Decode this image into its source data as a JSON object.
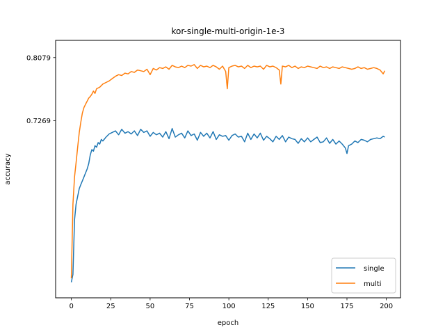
{
  "chart_data": {
    "type": "line",
    "title": "kor-single-multi-origin-1e-3",
    "xlabel": "epoch",
    "ylabel": "accuracy",
    "xlim": [
      -10,
      209
    ],
    "ylim": [
      0.5,
      0.83
    ],
    "x_ticks": [
      0,
      25,
      50,
      75,
      100,
      125,
      150,
      175,
      200
    ],
    "y_ticks": [
      0.7269,
      0.8079
    ],
    "y_tick_labels": [
      "0.7269",
      "0.8079"
    ],
    "grid": false,
    "legend_position": "lower-right",
    "series": [
      {
        "name": "single",
        "color": "#1f77b4",
        "x": [
          0,
          1,
          2,
          3,
          4,
          5,
          6,
          7,
          8,
          9,
          10,
          11,
          12,
          13,
          14,
          15,
          16,
          17,
          18,
          19,
          20,
          22,
          24,
          26,
          28,
          30,
          32,
          34,
          36,
          38,
          40,
          42,
          44,
          46,
          48,
          50,
          52,
          54,
          56,
          58,
          60,
          62,
          64,
          66,
          68,
          70,
          72,
          74,
          76,
          78,
          80,
          82,
          84,
          86,
          88,
          90,
          92,
          94,
          96,
          98,
          100,
          102,
          104,
          106,
          108,
          110,
          112,
          114,
          116,
          118,
          120,
          122,
          124,
          126,
          128,
          130,
          132,
          134,
          136,
          138,
          140,
          142,
          144,
          146,
          148,
          150,
          152,
          154,
          156,
          158,
          160,
          162,
          164,
          166,
          168,
          170,
          172,
          174,
          175,
          176,
          178,
          180,
          182,
          184,
          186,
          188,
          190,
          192,
          194,
          196,
          198,
          199
        ],
        "values": [
          0.52,
          0.53,
          0.6,
          0.62,
          0.63,
          0.64,
          0.645,
          0.65,
          0.655,
          0.66,
          0.665,
          0.672,
          0.683,
          0.69,
          0.688,
          0.695,
          0.693,
          0.699,
          0.697,
          0.703,
          0.701,
          0.706,
          0.71,
          0.712,
          0.714,
          0.709,
          0.716,
          0.711,
          0.713,
          0.71,
          0.714,
          0.708,
          0.716,
          0.712,
          0.714,
          0.707,
          0.712,
          0.709,
          0.711,
          0.706,
          0.713,
          0.704,
          0.717,
          0.706,
          0.709,
          0.711,
          0.705,
          0.714,
          0.708,
          0.71,
          0.702,
          0.712,
          0.707,
          0.711,
          0.705,
          0.713,
          0.703,
          0.709,
          0.707,
          0.708,
          0.702,
          0.708,
          0.71,
          0.706,
          0.707,
          0.7,
          0.711,
          0.703,
          0.71,
          0.705,
          0.711,
          0.702,
          0.707,
          0.704,
          0.7,
          0.707,
          0.703,
          0.708,
          0.7,
          0.706,
          0.704,
          0.703,
          0.698,
          0.704,
          0.7,
          0.705,
          0.7,
          0.703,
          0.706,
          0.699,
          0.7,
          0.705,
          0.698,
          0.703,
          0.697,
          0.701,
          0.697,
          0.692,
          0.685,
          0.695,
          0.697,
          0.701,
          0.699,
          0.703,
          0.702,
          0.7,
          0.703,
          0.704,
          0.705,
          0.704,
          0.707,
          0.706
        ]
      },
      {
        "name": "multi",
        "color": "#ff7f0e",
        "x": [
          0,
          1,
          2,
          3,
          4,
          5,
          6,
          7,
          8,
          9,
          10,
          11,
          12,
          13,
          14,
          15,
          16,
          18,
          20,
          22,
          24,
          26,
          28,
          30,
          32,
          34,
          36,
          38,
          40,
          42,
          44,
          46,
          48,
          50,
          52,
          54,
          56,
          58,
          60,
          62,
          64,
          66,
          68,
          70,
          72,
          74,
          76,
          78,
          80,
          82,
          84,
          86,
          88,
          90,
          92,
          94,
          96,
          98,
          99,
          100,
          102,
          104,
          106,
          108,
          110,
          112,
          114,
          116,
          118,
          120,
          122,
          124,
          126,
          128,
          130,
          132,
          133,
          134,
          136,
          138,
          140,
          142,
          144,
          146,
          148,
          150,
          152,
          154,
          156,
          158,
          160,
          162,
          164,
          166,
          168,
          170,
          172,
          174,
          176,
          178,
          180,
          182,
          184,
          186,
          188,
          190,
          192,
          194,
          196,
          198,
          199
        ],
        "values": [
          0.525,
          0.62,
          0.655,
          0.673,
          0.693,
          0.712,
          0.725,
          0.737,
          0.744,
          0.748,
          0.752,
          0.756,
          0.758,
          0.761,
          0.765,
          0.762,
          0.768,
          0.77,
          0.774,
          0.776,
          0.778,
          0.781,
          0.784,
          0.786,
          0.785,
          0.788,
          0.787,
          0.79,
          0.789,
          0.792,
          0.791,
          0.79,
          0.793,
          0.786,
          0.794,
          0.792,
          0.795,
          0.794,
          0.796,
          0.793,
          0.798,
          0.796,
          0.795,
          0.797,
          0.795,
          0.798,
          0.797,
          0.799,
          0.794,
          0.798,
          0.796,
          0.797,
          0.795,
          0.798,
          0.796,
          0.793,
          0.797,
          0.79,
          0.768,
          0.795,
          0.797,
          0.798,
          0.796,
          0.797,
          0.794,
          0.798,
          0.795,
          0.797,
          0.796,
          0.797,
          0.793,
          0.798,
          0.796,
          0.797,
          0.795,
          0.792,
          0.774,
          0.797,
          0.796,
          0.798,
          0.795,
          0.797,
          0.794,
          0.796,
          0.795,
          0.797,
          0.796,
          0.795,
          0.794,
          0.797,
          0.795,
          0.796,
          0.794,
          0.796,
          0.795,
          0.794,
          0.796,
          0.795,
          0.794,
          0.793,
          0.794,
          0.796,
          0.794,
          0.795,
          0.793,
          0.794,
          0.795,
          0.794,
          0.792,
          0.787,
          0.791
        ]
      }
    ]
  }
}
